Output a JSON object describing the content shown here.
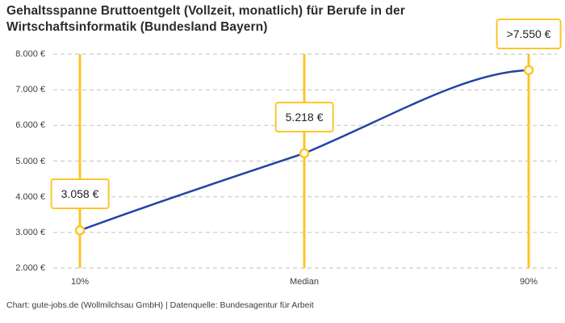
{
  "title": "Gehaltsspanne Bruttoentgelt (Vollzeit, monatlich) für Berufe in der Wirtschaftsinformatik (Bundesland Bayern)",
  "footer": "Chart: gute-jobs.de (Wollmilchsau GmbH) | Datenquelle: Bundesagentur für Arbeit",
  "colors": {
    "accent": "#FDC528",
    "line": "#2243A6",
    "grid": "#C9C9C9",
    "title": "#2B2B2B",
    "text": "#3C3C3C"
  },
  "chart_data": {
    "type": "line",
    "categories": [
      "10%",
      "Median",
      "90%"
    ],
    "values": [
      3058,
      5218,
      7550
    ],
    "point_labels": [
      "3.058 €",
      "5.218 €",
      ">7.550 €"
    ],
    "y_ticks": [
      "8.000 €",
      "7.000 €",
      "6.000 €",
      "5.000 €",
      "4.000 €",
      "3.000 €",
      "2.000 €"
    ],
    "y_tick_values": [
      8000,
      7000,
      6000,
      5000,
      4000,
      3000,
      2000
    ],
    "ylim": [
      2000,
      8000
    ],
    "xlabel": "",
    "ylabel": "",
    "grid": "horizontal-dashed",
    "legend": "none",
    "marker": "open-circle",
    "annotation_style": "value-boxes-above-points-on-vertical-percentile-lines"
  }
}
